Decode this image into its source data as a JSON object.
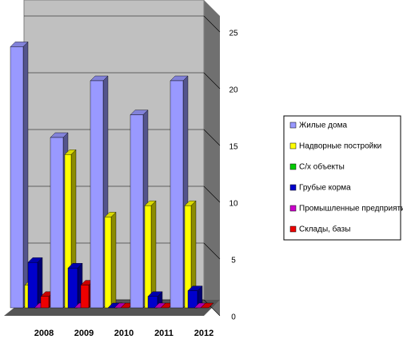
{
  "chart_data": {
    "type": "bar3d",
    "categories": [
      "2008",
      "2009",
      "2010",
      "2011",
      "2012"
    ],
    "series": [
      {
        "name": "Жилые дома",
        "color": "#9999ff",
        "values": [
          23,
          15,
          20,
          17,
          20
        ]
      },
      {
        "name": "Надворные постройки",
        "color": "#ffff00",
        "values": [
          2,
          13.5,
          8,
          9,
          9
        ]
      },
      {
        "name": "С/х объекты",
        "color": "#00cc00",
        "values": [
          0,
          0,
          0,
          0,
          0
        ]
      },
      {
        "name": "Грубые корма",
        "color": "#0000cc",
        "values": [
          4,
          3.5,
          0,
          1,
          1.5
        ]
      },
      {
        "name": "Промышленные предприятия",
        "color": "#cc00cc",
        "values": [
          0,
          0,
          0,
          0,
          0
        ]
      },
      {
        "name": "Склады, базы",
        "color": "#ee0000",
        "values": [
          1,
          2,
          0,
          0,
          0
        ]
      }
    ],
    "ylim": [
      0,
      25
    ],
    "yticks": [
      0,
      5,
      10,
      15,
      20,
      25
    ],
    "grid": true
  }
}
